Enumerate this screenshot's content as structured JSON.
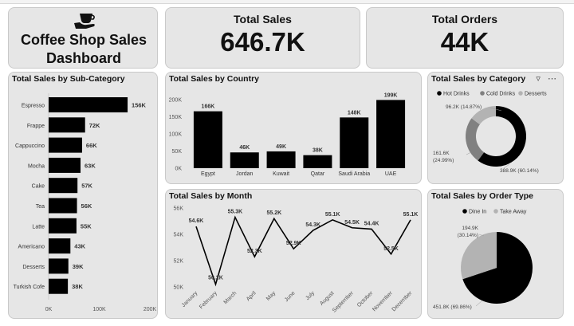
{
  "header": {
    "title": "Coffee Shop Sales Dashboard",
    "icon": "coffee-cup-hand-icon"
  },
  "kpis": {
    "total_sales_label": "Total Sales",
    "total_sales_value": "646.7K",
    "total_orders_label": "Total Orders",
    "total_orders_value": "44K"
  },
  "colors": {
    "card_bg": "#e6e6e6",
    "bar": "#000000",
    "dark_gray": "#808080",
    "light_gray": "#b3b3b3"
  },
  "chart_data": [
    {
      "id": "subcategory",
      "type": "bar",
      "orientation": "horizontal",
      "title": "Total Sales by Sub-Category",
      "categories": [
        "Espresso",
        "Frappe",
        "Cappuccino",
        "Mocha",
        "Cake",
        "Tea",
        "Latte",
        "Americano",
        "Desserts",
        "Turkish Cofe"
      ],
      "values": [
        156,
        72,
        66,
        63,
        57,
        56,
        55,
        43,
        39,
        38
      ],
      "labels": [
        "156K",
        "72K",
        "66K",
        "63K",
        "57K",
        "56K",
        "55K",
        "43K",
        "39K",
        "38K"
      ],
      "xlim": [
        0,
        200
      ],
      "xticks": [
        "0K",
        "100K",
        "200K"
      ]
    },
    {
      "id": "country",
      "type": "bar",
      "title": "Total Sales by Country",
      "categories": [
        "Egypt",
        "Jordan",
        "Kuwait",
        "Qatar",
        "Saudi Arabia",
        "UAE"
      ],
      "values": [
        166,
        46,
        49,
        38,
        148,
        199
      ],
      "labels": [
        "166K",
        "46K",
        "49K",
        "38K",
        "148K",
        "199K"
      ],
      "ylim": [
        0,
        200
      ],
      "yticks": [
        "0K",
        "50K",
        "100K",
        "150K",
        "200K"
      ]
    },
    {
      "id": "month",
      "type": "line",
      "title": "Total Sales by Month",
      "categories": [
        "January",
        "February",
        "March",
        "April",
        "May",
        "June",
        "July",
        "August",
        "September",
        "October",
        "November",
        "December"
      ],
      "values": [
        54.6,
        50.2,
        55.3,
        52.3,
        55.2,
        52.9,
        54.3,
        55.1,
        54.5,
        54.4,
        52.5,
        55.1
      ],
      "labels": [
        "54.6K",
        "50.2K",
        "55.3K",
        "52.3K",
        "55.2K",
        "52.9K",
        "54.3K",
        "55.1K",
        "54.5K",
        "54.4K",
        "52.5K",
        "55.1K"
      ],
      "ylim": [
        50,
        56
      ],
      "yticks": [
        "50K",
        "52K",
        "54K",
        "56K"
      ]
    },
    {
      "id": "category",
      "type": "donut",
      "title": "Total Sales by Category",
      "legend": [
        "Hot Drinks",
        "Cold Drinks",
        "Desserts"
      ],
      "values": [
        388.9,
        161.6,
        96.2
      ],
      "labels": [
        "388.9K (60.14%)",
        "161.6K (24.99%)",
        "96.2K (14.87%)"
      ]
    },
    {
      "id": "ordertype",
      "type": "pie",
      "title": "Total Sales by Order Type",
      "legend": [
        "Dine In",
        "Take Away"
      ],
      "values": [
        451.8,
        194.9
      ],
      "labels": [
        "451.8K (69.86%)",
        "194.9K (30.14%)"
      ]
    }
  ]
}
